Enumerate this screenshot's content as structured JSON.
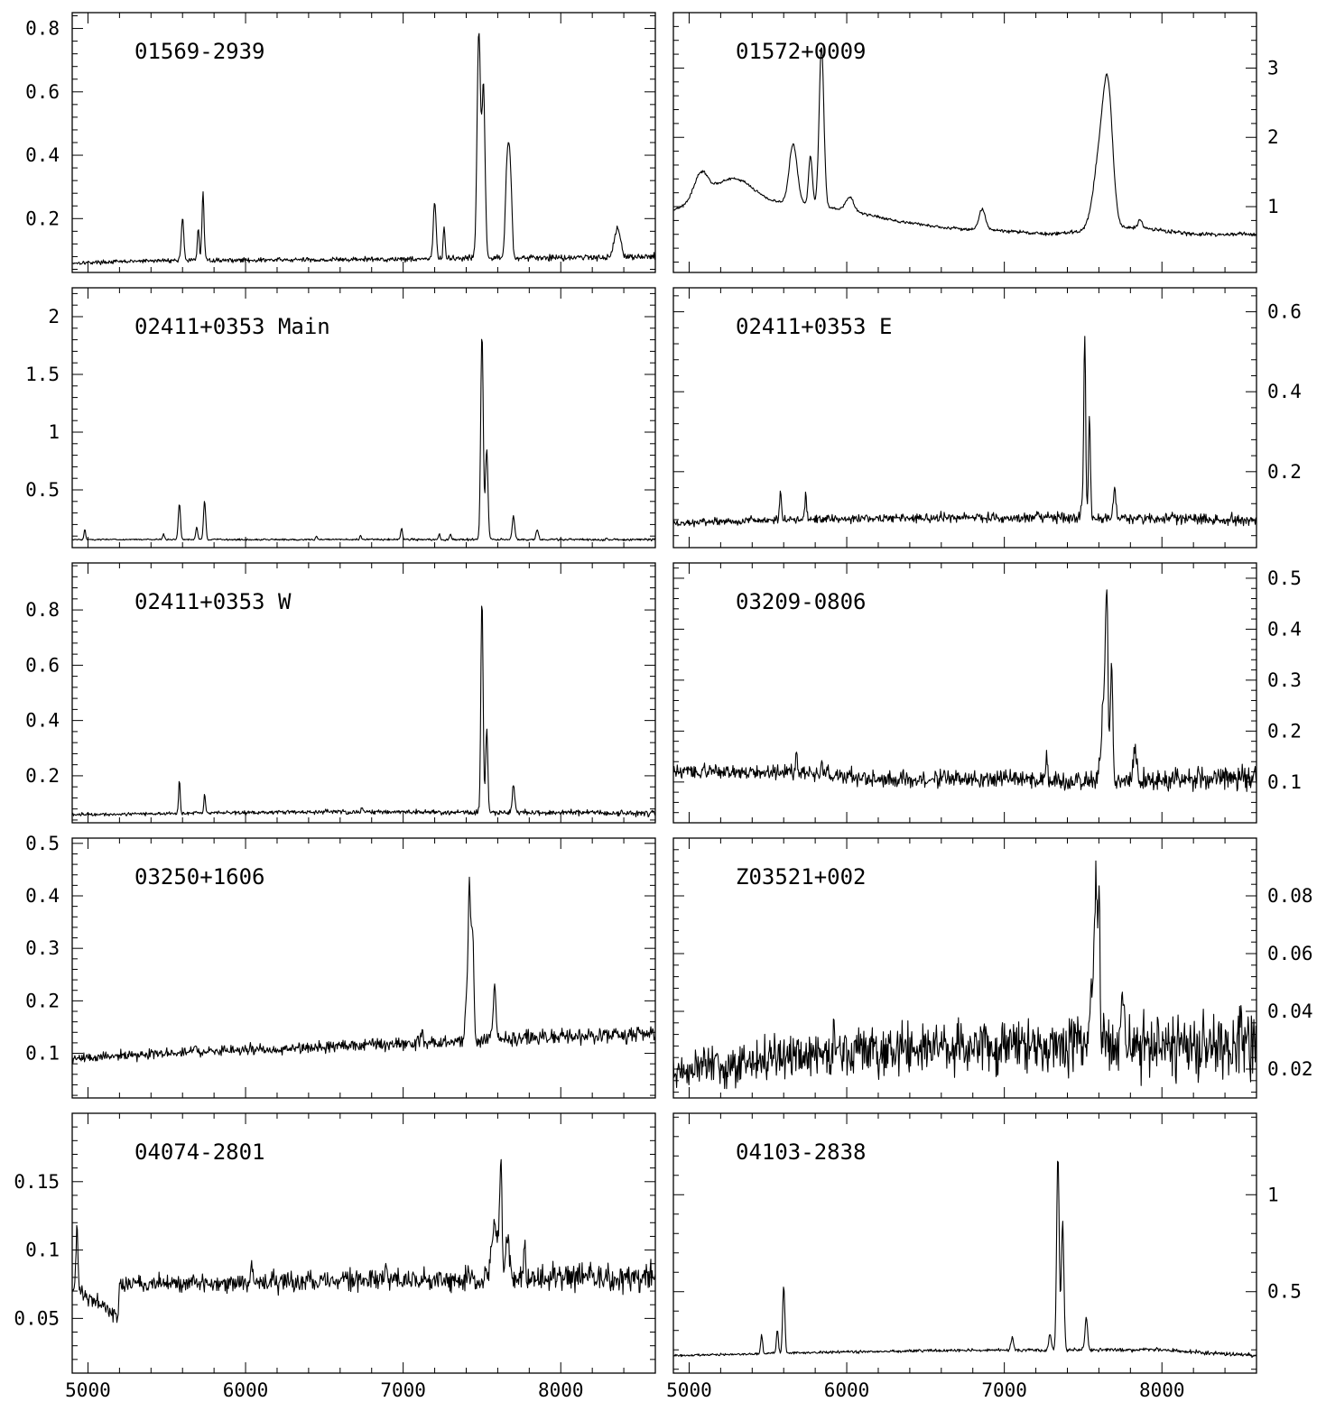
{
  "chart_data": [
    {
      "type": "line",
      "title": "01569-2939",
      "xlim": [
        4900,
        8600
      ],
      "ylim": [
        0.03,
        0.85
      ],
      "y_ticks": [
        0.2,
        0.4,
        0.6,
        0.8
      ],
      "y_tick_labels": [
        "0.2",
        "0.4",
        "0.6",
        "0.8"
      ],
      "y_axis_side": "left",
      "baseline": [
        [
          4900,
          0.06
        ],
        [
          5500,
          0.068
        ],
        [
          6500,
          0.07
        ],
        [
          7500,
          0.075
        ],
        [
          8600,
          0.08
        ]
      ],
      "lines": [
        [
          5600,
          0.135,
          8
        ],
        [
          5700,
          0.1,
          6
        ],
        [
          5730,
          0.21,
          7
        ],
        [
          7200,
          0.175,
          9
        ],
        [
          7260,
          0.1,
          6
        ],
        [
          7480,
          0.71,
          11
        ],
        [
          7510,
          0.53,
          10
        ],
        [
          7660,
          0.3,
          11
        ],
        [
          7680,
          0.26,
          10
        ],
        [
          8360,
          0.09,
          20
        ]
      ],
      "noise": 0.004
    },
    {
      "type": "line",
      "title": "01572+0009",
      "xlim": [
        4900,
        8600
      ],
      "ylim": [
        0.05,
        3.8
      ],
      "y_ticks": [
        1,
        2,
        3
      ],
      "y_tick_labels": [
        "1",
        "2",
        "3"
      ],
      "y_axis_side": "right",
      "baseline": [
        [
          4900,
          0.95
        ],
        [
          5000,
          1.05
        ],
        [
          5100,
          1.2
        ],
        [
          5300,
          1.15
        ],
        [
          5500,
          1.05
        ],
        [
          5700,
          1.05
        ],
        [
          5850,
          1.0
        ],
        [
          6000,
          0.95
        ],
        [
          6300,
          0.8
        ],
        [
          6600,
          0.7
        ],
        [
          7000,
          0.65
        ],
        [
          7300,
          0.6
        ],
        [
          7500,
          0.65
        ],
        [
          7600,
          0.7
        ],
        [
          7850,
          0.7
        ],
        [
          8200,
          0.6
        ],
        [
          8600,
          0.6
        ]
      ],
      "lines": [
        [
          5070,
          0.3,
          40
        ],
        [
          5300,
          0.25,
          120
        ],
        [
          5660,
          0.85,
          25
        ],
        [
          5770,
          0.7,
          12
        ],
        [
          5840,
          2.3,
          15
        ],
        [
          6020,
          0.2,
          25
        ],
        [
          6860,
          0.3,
          20
        ],
        [
          7620,
          1.25,
          45
        ],
        [
          7660,
          1.3,
          28
        ],
        [
          7860,
          0.1,
          15
        ]
      ],
      "noise": 0.012
    },
    {
      "type": "line",
      "title": "02411+0353 Main",
      "xlim": [
        4900,
        8600
      ],
      "ylim": [
        0.0,
        2.25
      ],
      "y_ticks": [
        0.5,
        1,
        1.5,
        2
      ],
      "y_tick_labels": [
        "0.5",
        "1",
        "1.5",
        "2"
      ],
      "y_axis_side": "left",
      "baseline": [
        [
          4900,
          0.07
        ],
        [
          8600,
          0.07
        ]
      ],
      "lines": [
        [
          4980,
          0.09,
          5
        ],
        [
          5480,
          0.05,
          5
        ],
        [
          5580,
          0.31,
          7
        ],
        [
          5690,
          0.11,
          6
        ],
        [
          5740,
          0.33,
          7
        ],
        [
          6450,
          0.03,
          5
        ],
        [
          6730,
          0.04,
          5
        ],
        [
          6990,
          0.1,
          6
        ],
        [
          7230,
          0.05,
          5
        ],
        [
          7300,
          0.05,
          5
        ],
        [
          7500,
          1.78,
          8
        ],
        [
          7530,
          0.78,
          8
        ],
        [
          7700,
          0.2,
          8
        ],
        [
          7850,
          0.08,
          8
        ]
      ],
      "noise": 0.004
    },
    {
      "type": "line",
      "title": "02411+0353 E",
      "xlim": [
        4900,
        8600
      ],
      "ylim": [
        0.01,
        0.66
      ],
      "y_ticks": [
        0.2,
        0.4,
        0.6
      ],
      "y_tick_labels": [
        "0.2",
        "0.4",
        "0.6"
      ],
      "y_axis_side": "right",
      "baseline": [
        [
          4900,
          0.07
        ],
        [
          5500,
          0.08
        ],
        [
          6500,
          0.085
        ],
        [
          7500,
          0.085
        ],
        [
          8600,
          0.08
        ]
      ],
      "lines": [
        [
          5580,
          0.07,
          6
        ],
        [
          5740,
          0.06,
          6
        ],
        [
          7210,
          0.02,
          6
        ],
        [
          7490,
          0.04,
          6
        ],
        [
          7510,
          0.47,
          6
        ],
        [
          7540,
          0.26,
          6
        ],
        [
          7700,
          0.08,
          8
        ]
      ],
      "noise": 0.006
    },
    {
      "type": "line",
      "title": "02411+0353 W",
      "xlim": [
        4900,
        8600
      ],
      "ylim": [
        0.03,
        0.97
      ],
      "y_ticks": [
        0.2,
        0.4,
        0.6,
        0.8
      ],
      "y_tick_labels": [
        "0.2",
        "0.4",
        "0.6",
        "0.8"
      ],
      "y_axis_side": "left",
      "baseline": [
        [
          4900,
          0.06
        ],
        [
          6500,
          0.07
        ],
        [
          8600,
          0.065
        ]
      ],
      "lines": [
        [
          5580,
          0.12,
          5
        ],
        [
          5740,
          0.07,
          5
        ],
        [
          6740,
          0.015,
          5
        ],
        [
          7500,
          0.77,
          7
        ],
        [
          7530,
          0.3,
          7
        ],
        [
          7700,
          0.1,
          8
        ]
      ],
      "noise": 0.004
    },
    {
      "type": "line",
      "title": "03209-0806",
      "xlim": [
        4900,
        8600
      ],
      "ylim": [
        0.02,
        0.53
      ],
      "y_ticks": [
        0.1,
        0.2,
        0.3,
        0.4,
        0.5
      ],
      "y_tick_labels": [
        "0.1",
        "0.2",
        "0.3",
        "0.4",
        "0.5"
      ],
      "y_axis_side": "right",
      "baseline": [
        [
          4900,
          0.12
        ],
        [
          5600,
          0.12
        ],
        [
          6300,
          0.105
        ],
        [
          7000,
          0.105
        ],
        [
          7600,
          0.1
        ],
        [
          8600,
          0.11
        ]
      ],
      "lines": [
        [
          5680,
          0.04,
          6
        ],
        [
          5840,
          0.03,
          6
        ],
        [
          7270,
          0.05,
          6
        ],
        [
          7630,
          0.15,
          15
        ],
        [
          7650,
          0.32,
          8
        ],
        [
          7680,
          0.23,
          8
        ],
        [
          7830,
          0.06,
          10
        ]
      ],
      "noise": 0.009
    },
    {
      "type": "line",
      "title": "03250+1606",
      "xlim": [
        4900,
        8600
      ],
      "ylim": [
        0.015,
        0.51
      ],
      "y_ticks": [
        0.1,
        0.2,
        0.3,
        0.4,
        0.5
      ],
      "y_tick_labels": [
        "0.1",
        "0.2",
        "0.3",
        "0.4",
        "0.5"
      ],
      "y_axis_side": "left",
      "baseline": [
        [
          4900,
          0.09
        ],
        [
          5500,
          0.1
        ],
        [
          6500,
          0.112
        ],
        [
          7500,
          0.125
        ],
        [
          8600,
          0.138
        ]
      ],
      "lines": [
        [
          5680,
          0.015,
          6
        ],
        [
          7120,
          0.03,
          6
        ],
        [
          7400,
          0.08,
          8
        ],
        [
          7420,
          0.29,
          8
        ],
        [
          7440,
          0.21,
          8
        ],
        [
          7580,
          0.11,
          8
        ]
      ],
      "noise": 0.006
    },
    {
      "type": "line",
      "title": "Z03521+002",
      "xlim": [
        4900,
        8600
      ],
      "ylim": [
        0.01,
        0.1
      ],
      "y_ticks": [
        0.02,
        0.04,
        0.06,
        0.08
      ],
      "y_tick_labels": [
        "0.02",
        "0.04",
        "0.06",
        "0.08"
      ],
      "y_axis_side": "right",
      "baseline": [
        [
          4900,
          0.018
        ],
        [
          5500,
          0.024
        ],
        [
          6500,
          0.027
        ],
        [
          7500,
          0.029
        ],
        [
          8600,
          0.028
        ]
      ],
      "lines": [
        [
          5920,
          0.012,
          6
        ],
        [
          7560,
          0.025,
          10
        ],
        [
          7580,
          0.055,
          7
        ],
        [
          7600,
          0.055,
          7
        ],
        [
          7750,
          0.02,
          8
        ]
      ],
      "noise": 0.0045
    },
    {
      "type": "line",
      "title": "04074-2801",
      "xlim": [
        4900,
        8600
      ],
      "ylim": [
        0.01,
        0.2
      ],
      "y_ticks": [
        0.05,
        0.1,
        0.15
      ],
      "y_tick_labels": [
        "0.05",
        "0.1",
        "0.15"
      ],
      "y_axis_side": "left",
      "baseline": [
        [
          4900,
          0.072
        ],
        [
          4940,
          0.07
        ],
        [
          5050,
          0.062
        ],
        [
          5100,
          0.06
        ],
        [
          5190,
          0.052
        ],
        [
          5200,
          0.075
        ],
        [
          6500,
          0.077
        ],
        [
          7500,
          0.079
        ],
        [
          8600,
          0.08
        ]
      ],
      "lines": [
        [
          4930,
          0.05,
          6
        ],
        [
          6040,
          0.012,
          6
        ],
        [
          6890,
          0.01,
          6
        ],
        [
          7580,
          0.04,
          20
        ],
        [
          7620,
          0.075,
          8
        ],
        [
          7660,
          0.03,
          12
        ],
        [
          7770,
          0.02,
          8
        ]
      ],
      "noise": 0.004
    },
    {
      "type": "line",
      "title": "04103-2838",
      "xlim": [
        4900,
        8600
      ],
      "ylim": [
        0.08,
        1.42
      ],
      "y_ticks": [
        0.5,
        1
      ],
      "y_tick_labels": [
        "0.5",
        "1"
      ],
      "y_axis_side": "right",
      "baseline": [
        [
          4900,
          0.17
        ],
        [
          6000,
          0.19
        ],
        [
          7000,
          0.2
        ],
        [
          8000,
          0.2
        ],
        [
          8600,
          0.17
        ]
      ],
      "lines": [
        [
          5460,
          0.1,
          6
        ],
        [
          5560,
          0.12,
          6
        ],
        [
          5600,
          0.35,
          7
        ],
        [
          7050,
          0.07,
          7
        ],
        [
          7290,
          0.08,
          8
        ],
        [
          7340,
          1.0,
          8
        ],
        [
          7370,
          0.66,
          8
        ],
        [
          7520,
          0.17,
          8
        ]
      ],
      "noise": 0.004
    }
  ],
  "x_ticks": [
    5000,
    6000,
    7000,
    8000
  ],
  "x_tick_labels": [
    "5000",
    "6000",
    "7000",
    "8000"
  ],
  "x_minor_step": 200,
  "line_color": "#000000",
  "background": "#ffffff"
}
